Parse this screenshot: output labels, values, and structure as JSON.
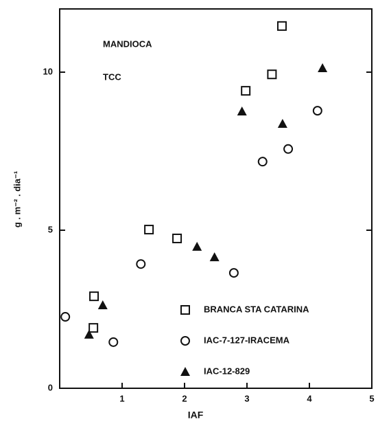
{
  "chart_data": {
    "type": "scatter",
    "annotations": [
      "MANDIOCA",
      "TCC"
    ],
    "xlabel": "IAF",
    "ylabel": "g . m⁻² . dia⁻¹",
    "xlim": [
      0,
      5
    ],
    "ylim": [
      0,
      12
    ],
    "xticks": [
      1,
      2,
      3,
      4,
      5
    ],
    "yticks": [
      0,
      5,
      10
    ],
    "series": [
      {
        "name": "BRANCA STA CATARINA",
        "color": "#111111",
        "marker": "square",
        "x": [
          0.55,
          0.54,
          1.43,
          1.88,
          2.98,
          3.4,
          3.56
        ],
        "values": [
          2.91,
          1.91,
          5.02,
          4.74,
          9.41,
          9.93,
          11.46
        ]
      },
      {
        "name": "IAC-7-127-IRACEMA",
        "color": "#111111",
        "marker": "circle",
        "x": [
          0.09,
          0.86,
          1.3,
          2.79,
          3.25,
          3.66,
          4.13
        ],
        "values": [
          2.26,
          1.46,
          3.93,
          3.65,
          7.17,
          7.57,
          8.78
        ]
      },
      {
        "name": "IAC-12-829",
        "color": "#111111",
        "marker": "triangle",
        "x": [
          0.47,
          0.69,
          2.2,
          2.48,
          2.92,
          3.57,
          4.21
        ],
        "values": [
          1.7,
          2.63,
          4.48,
          4.15,
          8.76,
          8.37,
          10.13
        ]
      }
    ]
  }
}
